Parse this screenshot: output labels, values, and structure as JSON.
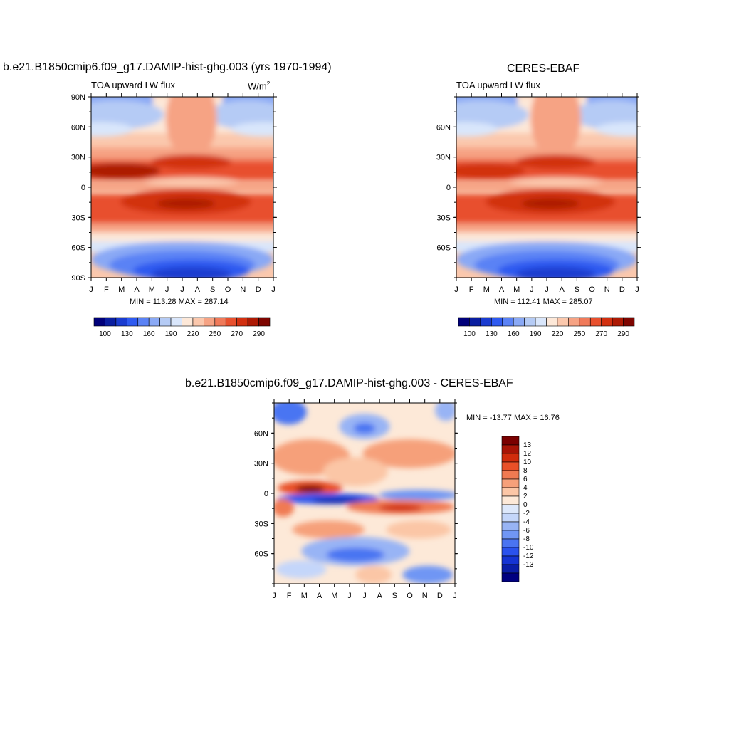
{
  "colors": {
    "scale": [
      "#00007a",
      "#0a1ea0",
      "#1a3cd0",
      "#2e5af0",
      "#5a82f5",
      "#8aa9f5",
      "#b5cbf5",
      "#d9e6fb",
      "#fde8d8",
      "#fbc8ad",
      "#f6a384",
      "#f07a5a",
      "#e8502e",
      "#d23010",
      "#ad1a04",
      "#7e0500"
    ],
    "abs_levels": [
      "100",
      "130",
      "160",
      "190",
      "220",
      "250",
      "270",
      "290"
    ],
    "diff_scale": [
      "#000080",
      "#0a1ea8",
      "#1534d4",
      "#2a52ee",
      "#4a74f2",
      "#7096f4",
      "#98b4f5",
      "#c4d6fa",
      "#dde8fb",
      "#fde9d8",
      "#fbc6a6",
      "#f6a07a",
      "#f07a52",
      "#e85028",
      "#d02c0c",
      "#a81406",
      "#7a0000"
    ],
    "diff_levels": [
      "13",
      "12",
      "10",
      "8",
      "6",
      "4",
      "2",
      "0",
      "-2",
      "-4",
      "-6",
      "-8",
      "-10",
      "-12",
      "-13"
    ]
  },
  "panels": {
    "left": {
      "title": "b.e21.B1850cmip6.f09_g17.DAMIP-hist-ghg.003 (yrs 1970-1994)",
      "subtitle": "TOA upward LW flux",
      "units": "W/m",
      "units_sup": "2",
      "yticks": [
        "90N",
        "60N",
        "30N",
        "0",
        "30S",
        "60S",
        "90S"
      ],
      "xticks": [
        "J",
        "F",
        "M",
        "A",
        "M",
        "J",
        "J",
        "A",
        "S",
        "O",
        "N",
        "D",
        "J"
      ],
      "minmax": "MIN = 113.28 MAX = 287.14"
    },
    "right": {
      "title": "CERES-EBAF",
      "subtitle": "TOA upward LW flux",
      "yticks": [
        "60N",
        "30N",
        "0",
        "30S",
        "60S"
      ],
      "xticks": [
        "J",
        "F",
        "M",
        "A",
        "M",
        "J",
        "J",
        "A",
        "S",
        "O",
        "N",
        "D",
        "J"
      ],
      "minmax": "MIN = 112.41 MAX = 285.07"
    },
    "diff": {
      "title": "b.e21.B1850cmip6.f09_g17.DAMIP-hist-ghg.003 - CERES-EBAF",
      "yticks": [
        "60N",
        "30N",
        "0",
        "30S",
        "60S"
      ],
      "xticks": [
        "J",
        "F",
        "M",
        "A",
        "M",
        "J",
        "J",
        "A",
        "S",
        "O",
        "N",
        "D",
        "J"
      ],
      "minmax": "MIN = -13.77 MAX =  16.76"
    }
  },
  "chart_data": [
    {
      "type": "heatmap",
      "title": "b.e21.B1850cmip6.f09_g17.DAMIP-hist-ghg.003 (yrs 1970-1994)",
      "subtitle": "TOA upward LW flux",
      "units": "W/m2",
      "x": [
        "J",
        "F",
        "M",
        "A",
        "M",
        "J",
        "J",
        "A",
        "S",
        "O",
        "N",
        "D",
        "J"
      ],
      "y_range": [
        "90S",
        "90N"
      ],
      "min": 113.28,
      "max": 287.14,
      "legend_levels": [
        100,
        130,
        160,
        190,
        220,
        250,
        270,
        290
      ]
    },
    {
      "type": "heatmap",
      "title": "CERES-EBAF",
      "subtitle": "TOA upward LW flux",
      "x": [
        "J",
        "F",
        "M",
        "A",
        "M",
        "J",
        "J",
        "A",
        "S",
        "O",
        "N",
        "D",
        "J"
      ],
      "y_range": [
        "90S",
        "90N"
      ],
      "min": 112.41,
      "max": 285.07,
      "legend_levels": [
        100,
        130,
        160,
        190,
        220,
        250,
        270,
        290
      ]
    },
    {
      "type": "heatmap",
      "title": "b.e21.B1850cmip6.f09_g17.DAMIP-hist-ghg.003 - CERES-EBAF",
      "x": [
        "J",
        "F",
        "M",
        "A",
        "M",
        "J",
        "J",
        "A",
        "S",
        "O",
        "N",
        "D",
        "J"
      ],
      "y_range": [
        "90S",
        "90N"
      ],
      "min": -13.77,
      "max": 16.76,
      "legend_levels": [
        13,
        12,
        10,
        8,
        6,
        4,
        2,
        0,
        -2,
        -4,
        -6,
        -8,
        -10,
        -12,
        -13
      ]
    }
  ]
}
